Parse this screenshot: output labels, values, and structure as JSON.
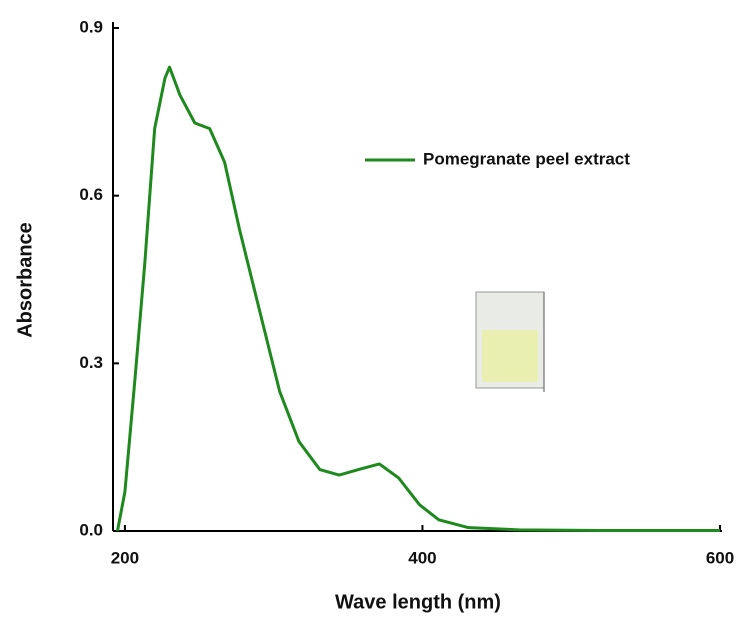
{
  "chart_data": {
    "type": "line",
    "x_label": "Wave length (nm)",
    "y_label": "Absorbance",
    "x": [
      195,
      200,
      206.7,
      213.4,
      220,
      226.9,
      230,
      237,
      247,
      257,
      267,
      277,
      290,
      304,
      317,
      331,
      344,
      357,
      371,
      384,
      398,
      411,
      431,
      465,
      519,
      600
    ],
    "series": [
      {
        "name": "Pomegranate peel extract",
        "color": "#1e8a1e",
        "values": [
          0,
          0.07,
          0.27,
          0.48,
          0.72,
          0.81,
          0.83,
          0.78,
          0.73,
          0.72,
          0.66,
          0.54,
          0.4,
          0.25,
          0.16,
          0.11,
          0.1,
          0.11,
          0.12,
          0.095,
          0.047,
          0.02,
          0.006,
          0.002,
          0.001,
          0.001
        ]
      }
    ],
    "xlim": [
      192,
      600
    ],
    "ylim": [
      0,
      0.9
    ],
    "xticks": [
      200,
      400,
      600
    ],
    "yticks": [
      {
        "value": 0,
        "label": "0.0"
      },
      0.3,
      0.6,
      0.9
    ],
    "legend": "upper right"
  }
}
